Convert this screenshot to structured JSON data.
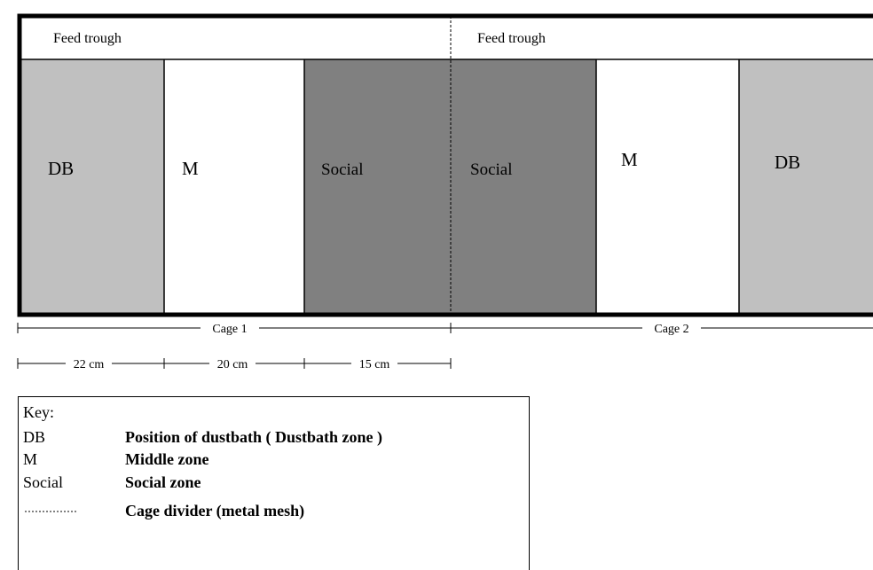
{
  "cages": [
    {
      "label": "Cage 1",
      "trough": "Feed trough",
      "zones": [
        "DB",
        "M",
        "Social"
      ]
    },
    {
      "label": "Cage 2",
      "trough": "Feed trough",
      "zones": [
        "Social",
        "M",
        "DB"
      ]
    }
  ],
  "dimensions": [
    "22 cm",
    "20 cm",
    "15 cm"
  ],
  "key": {
    "title": "Key:",
    "entries": [
      {
        "term": "DB",
        "description": "Position of dustbath ( Dustbath zone )"
      },
      {
        "term": "M",
        "description": "Middle zone"
      },
      {
        "term": "Social",
        "description": "Social zone"
      }
    ],
    "divider_description": "Cage divider (metal mesh)"
  }
}
